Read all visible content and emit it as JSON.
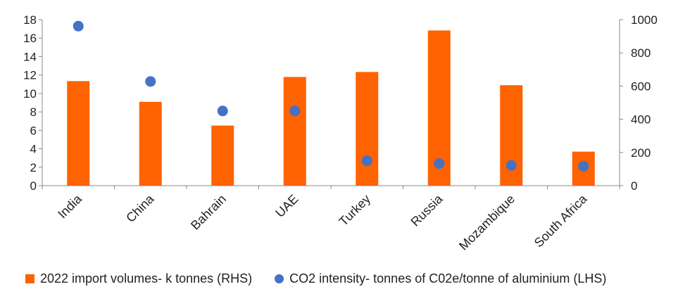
{
  "chart_data": {
    "type": "bar",
    "categories": [
      "India",
      "China",
      "Bahrain",
      "UAE",
      "Turkey",
      "Russia",
      "Mozambique",
      "South Africa"
    ],
    "series": [
      {
        "name": "2022 import volumes- k tonnes (RHS)",
        "type": "bar",
        "axis": "right",
        "color": "#ff6200",
        "values": [
          630,
          505,
          362,
          655,
          685,
          935,
          605,
          205
        ]
      },
      {
        "name": "CO2 intensity- tonnes of C02e/tonne of aluminium (LHS)",
        "type": "scatter",
        "axis": "left",
        "color": "#4472c4",
        "values": [
          17.3,
          11.3,
          8.1,
          8.1,
          2.7,
          2.4,
          2.2,
          2.1
        ]
      }
    ],
    "y_left": {
      "ylim": [
        0,
        18
      ],
      "ticks": [
        "0",
        "2",
        "4",
        "6",
        "8",
        "10",
        "12",
        "14",
        "16",
        "18"
      ]
    },
    "y_right": {
      "ylim": [
        0,
        1000
      ],
      "ticks": [
        "0",
        "200",
        "400",
        "600",
        "800",
        "1000"
      ]
    },
    "grid": false,
    "legend_position": "bottom"
  }
}
